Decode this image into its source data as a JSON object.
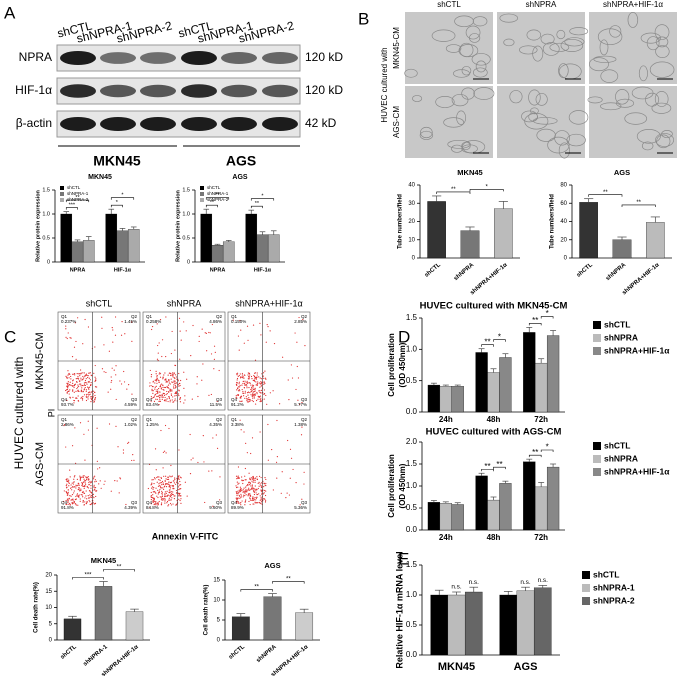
{
  "figure": {
    "panel_labels": [
      "A",
      "B",
      "C",
      "D",
      "E"
    ],
    "blot": {
      "lanes": [
        "shCTL",
        "shNPRA-1",
        "shNPRA-2",
        "shCTL",
        "shNPRA-1",
        "shNPRA-2"
      ],
      "rows": [
        "NPRA",
        "HIF-1α",
        "β-actin"
      ],
      "sizes": [
        "120 kD",
        "120 kD",
        "42 kD"
      ],
      "groups": [
        "MKN45",
        "AGS"
      ]
    },
    "tube_images": {
      "columns": [
        "shCTL",
        "shNPRA",
        "shNPRA+HIF-1α"
      ],
      "side_label": "HUVEC cultured with",
      "rows": [
        "MKN45-CM",
        "AGS-CM"
      ]
    },
    "flow": {
      "columns": [
        "shCTL",
        "shNPRA",
        "shNPRA+HIF-1α"
      ],
      "side_label": "HUVEC cultured with",
      "rows": [
        "MKN45-CM",
        "AGS-CM"
      ],
      "y_axis": "PI",
      "x_axis": "Annexin V-FITC",
      "quadrant_names": [
        "Q1",
        "Q2",
        "Q3",
        "Q4"
      ],
      "plots": [
        [
          [
            "0.237%",
            "1.45%",
            "4.59%",
            "93.7%"
          ],
          [
            "0.258%",
            "4.86%",
            "11.5%",
            "83.4%"
          ],
          [
            "0.150%",
            "2.85%",
            "5.77%",
            "91.2%"
          ]
        ],
        [
          [
            "2.86%",
            "1.02%",
            "4.39%",
            "91.8%"
          ],
          [
            "1.25%",
            "4.35%",
            "9.60%",
            "84.8%"
          ],
          [
            "3.38%",
            "1.38%",
            "5.36%",
            "89.9%"
          ]
        ]
      ]
    }
  },
  "chart_data": [
    {
      "type": "bar",
      "title": "MKN45",
      "y_label": "Relative protein expression",
      "categories": [
        "NPRA",
        "HIF-1α"
      ],
      "series": [
        {
          "name": "shCTL",
          "color": "#000000",
          "values": [
            1.0,
            1.0
          ],
          "errors": [
            0.05,
            0.1
          ]
        },
        {
          "name": "shNPRA-1",
          "color": "#777777",
          "values": [
            0.42,
            0.65
          ],
          "errors": [
            0.04,
            0.05
          ]
        },
        {
          "name": "shNPRA-2",
          "color": "#aaaaaa",
          "values": [
            0.45,
            0.68
          ],
          "errors": [
            0.08,
            0.05
          ]
        }
      ],
      "ylim": [
        0,
        1.5
      ],
      "yticks": [
        0,
        0.5,
        {
          "value": 1,
          "label": "1.0"
        },
        1.5
      ],
      "legend": "upper left",
      "significance": [
        {
          "label": "***",
          "category": 0,
          "series": [
            0,
            1
          ]
        },
        {
          "label": "**",
          "category": 0,
          "series": [
            0,
            2
          ]
        },
        {
          "label": "*",
          "category": 1,
          "series": [
            0,
            1
          ]
        },
        {
          "label": "*",
          "category": 1,
          "series": [
            0,
            2
          ]
        }
      ]
    },
    {
      "type": "bar",
      "title": "AGS",
      "y_label": "Relative protein expression",
      "categories": [
        "NPRA",
        "HIF-1α"
      ],
      "series": [
        {
          "name": "shCTL",
          "color": "#000000",
          "values": [
            1.0,
            1.0
          ],
          "errors": [
            0.1,
            0.08
          ]
        },
        {
          "name": "shNPRA-1",
          "color": "#777777",
          "values": [
            0.35,
            0.57
          ],
          "errors": [
            0.02,
            0.06
          ]
        },
        {
          "name": "shNPRA-2",
          "color": "#aaaaaa",
          "values": [
            0.42,
            0.57
          ],
          "errors": [
            0.03,
            0.08
          ]
        }
      ],
      "ylim": [
        0,
        1.5
      ],
      "yticks": [
        0,
        0.5,
        {
          "value": 1,
          "label": "1.0"
        },
        1.5
      ],
      "legend": "upper left",
      "significance": [
        {
          "label": "**",
          "category": 0,
          "series": [
            0,
            1
          ]
        },
        {
          "label": "**",
          "category": 0,
          "series": [
            0,
            2
          ]
        },
        {
          "label": "**",
          "category": 1,
          "series": [
            0,
            1
          ]
        },
        {
          "label": "*",
          "category": 1,
          "series": [
            0,
            2
          ]
        }
      ]
    },
    {
      "type": "bar",
      "title": "MKN45",
      "y_label": "Tube numbers/field",
      "categories": [
        "shCTL",
        "shNPRA",
        "shNPRA+HIF-1α"
      ],
      "values": [
        31,
        15,
        27
      ],
      "errors": [
        3,
        2,
        4
      ],
      "colors": [
        "#333333",
        "#777777",
        "#bbbbbb"
      ],
      "ylim": [
        0,
        40
      ],
      "yticks": [
        0,
        10,
        20,
        30,
        40
      ],
      "significance": [
        {
          "label": "**",
          "bars": [
            0,
            1
          ]
        },
        {
          "label": "*",
          "bars": [
            1,
            2
          ]
        }
      ]
    },
    {
      "type": "bar",
      "title": "AGS",
      "y_label": "Tube numbers/field",
      "categories": [
        "shCTL",
        "shNPRA",
        "shNPRA+HIF-1α"
      ],
      "values": [
        61,
        20,
        39
      ],
      "errors": [
        4,
        3,
        6
      ],
      "colors": [
        "#333333",
        "#777777",
        "#bbbbbb"
      ],
      "ylim": [
        0,
        80
      ],
      "yticks": [
        0,
        20,
        40,
        60,
        80
      ],
      "significance": [
        {
          "label": "**",
          "bars": [
            0,
            1
          ]
        },
        {
          "label": "**",
          "bars": [
            1,
            2
          ]
        }
      ]
    },
    {
      "type": "bar",
      "title": "MKN45",
      "y_label": "Cell death rate(%)",
      "categories": [
        "shCTL",
        "shNPRA-1",
        "shNPRA+HIF-1α"
      ],
      "values": [
        6.5,
        16.5,
        8.7
      ],
      "errors": [
        0.8,
        1.5,
        0.8
      ],
      "colors": [
        "#333333",
        "#777777",
        "#cccccc"
      ],
      "ylim": [
        0,
        20
      ],
      "yticks": [
        0,
        5,
        10,
        15,
        20
      ],
      "significance": [
        {
          "label": "***",
          "bars": [
            0,
            1
          ]
        },
        {
          "label": "**",
          "bars": [
            1,
            2
          ]
        }
      ]
    },
    {
      "type": "bar",
      "title": "AGS",
      "y_label": "Cell death rate(%)",
      "categories": [
        "shCTL",
        "shNPRA",
        "shNPRA+HIF-1α"
      ],
      "values": [
        5.8,
        10.8,
        6.8
      ],
      "errors": [
        0.8,
        0.8,
        0.9
      ],
      "colors": [
        "#333333",
        "#777777",
        "#cccccc"
      ],
      "ylim": [
        0,
        15
      ],
      "yticks": [
        0,
        5,
        10,
        15
      ],
      "significance": [
        {
          "label": "**",
          "bars": [
            0,
            1
          ]
        },
        {
          "label": "**",
          "bars": [
            1,
            2
          ]
        }
      ]
    },
    {
      "type": "bar",
      "title": "HUVEC cultured with MKN45-CM",
      "y_label": [
        "Cell proliferation",
        "(OD 450nm)"
      ],
      "categories": [
        "24h",
        "48h",
        "72h"
      ],
      "series": [
        {
          "name": "shCTL",
          "color": "#000000",
          "values": [
            0.43,
            0.95,
            1.27
          ],
          "errors": [
            0.03,
            0.06,
            0.08
          ]
        },
        {
          "name": "shNPRA",
          "color": "#bbbbbb",
          "values": [
            0.41,
            0.63,
            0.78
          ],
          "errors": [
            0.02,
            0.06,
            0.07
          ]
        },
        {
          "name": "shNPRA+HIF-1α",
          "color": "#888888",
          "values": [
            0.41,
            0.87,
            1.22
          ],
          "errors": [
            0.02,
            0.06,
            0.08
          ]
        }
      ],
      "ylim": [
        0,
        1.5
      ],
      "yticks": [
        {
          "value": 0,
          "label": "0.0"
        },
        0.5,
        {
          "value": 1,
          "label": "1.0"
        },
        1.5
      ],
      "legend": "right",
      "significance": [
        {
          "label": "**",
          "category": 1,
          "series": [
            0,
            1
          ]
        },
        {
          "label": "*",
          "category": 1,
          "series": [
            1,
            2
          ]
        },
        {
          "label": "**",
          "category": 2,
          "series": [
            0,
            1
          ]
        },
        {
          "label": "*",
          "category": 2,
          "series": [
            1,
            2
          ]
        }
      ]
    },
    {
      "type": "bar",
      "title": "HUVEC cultured with AGS-CM",
      "y_label": [
        "Cell proliferation",
        "(OD 450nm)"
      ],
      "categories": [
        "24h",
        "48h",
        "72h"
      ],
      "series": [
        {
          "name": "shCTL",
          "color": "#000000",
          "values": [
            0.63,
            1.23,
            1.55
          ],
          "errors": [
            0.04,
            0.06,
            0.06
          ]
        },
        {
          "name": "shNPRA",
          "color": "#bbbbbb",
          "values": [
            0.61,
            0.68,
            0.98
          ],
          "errors": [
            0.03,
            0.07,
            0.1
          ]
        },
        {
          "name": "shNPRA+HIF-1α",
          "color": "#888888",
          "values": [
            0.58,
            1.06,
            1.43
          ],
          "errors": [
            0.04,
            0.05,
            0.07
          ]
        }
      ],
      "ylim": [
        0,
        2
      ],
      "yticks": [
        {
          "value": 0,
          "label": "0.0"
        },
        0.5,
        {
          "value": 1,
          "label": "1.0"
        },
        1.5,
        {
          "value": 2,
          "label": "2.0"
        }
      ],
      "legend": "right",
      "significance": [
        {
          "label": "**",
          "category": 1,
          "series": [
            0,
            1
          ]
        },
        {
          "label": "**",
          "category": 1,
          "series": [
            1,
            2
          ]
        },
        {
          "label": "**",
          "category": 2,
          "series": [
            0,
            1
          ]
        },
        {
          "label": "*",
          "category": 2,
          "series": [
            1,
            2
          ]
        }
      ]
    },
    {
      "type": "bar",
      "y_label": "Relative HIF-1α mRNA level",
      "categories": [
        "MKN45",
        "AGS"
      ],
      "series": [
        {
          "name": "shCTL",
          "color": "#000000",
          "values": [
            1.0,
            1.0
          ],
          "errors": [
            0.08,
            0.06
          ]
        },
        {
          "name": "shNPRA-1",
          "color": "#bbbbbb",
          "values": [
            1.0,
            1.07
          ],
          "errors": [
            0.05,
            0.06
          ]
        },
        {
          "name": "shNPRA-2",
          "color": "#666666",
          "values": [
            1.05,
            1.12
          ],
          "errors": [
            0.08,
            0.04
          ]
        }
      ],
      "ylim": [
        0,
        1.5
      ],
      "yticks": [
        {
          "value": 0,
          "label": "0.0"
        },
        0.5,
        {
          "value": 1,
          "label": "1.0"
        },
        1.5
      ],
      "legend": "right",
      "significance": [
        {
          "label": "n.s.",
          "category": 0,
          "series": [
            1
          ]
        },
        {
          "label": "n.s.",
          "category": 0,
          "series": [
            2
          ]
        },
        {
          "label": "n.s.",
          "category": 1,
          "series": [
            1
          ]
        },
        {
          "label": "n.s.",
          "category": 1,
          "series": [
            2
          ]
        }
      ]
    }
  ]
}
